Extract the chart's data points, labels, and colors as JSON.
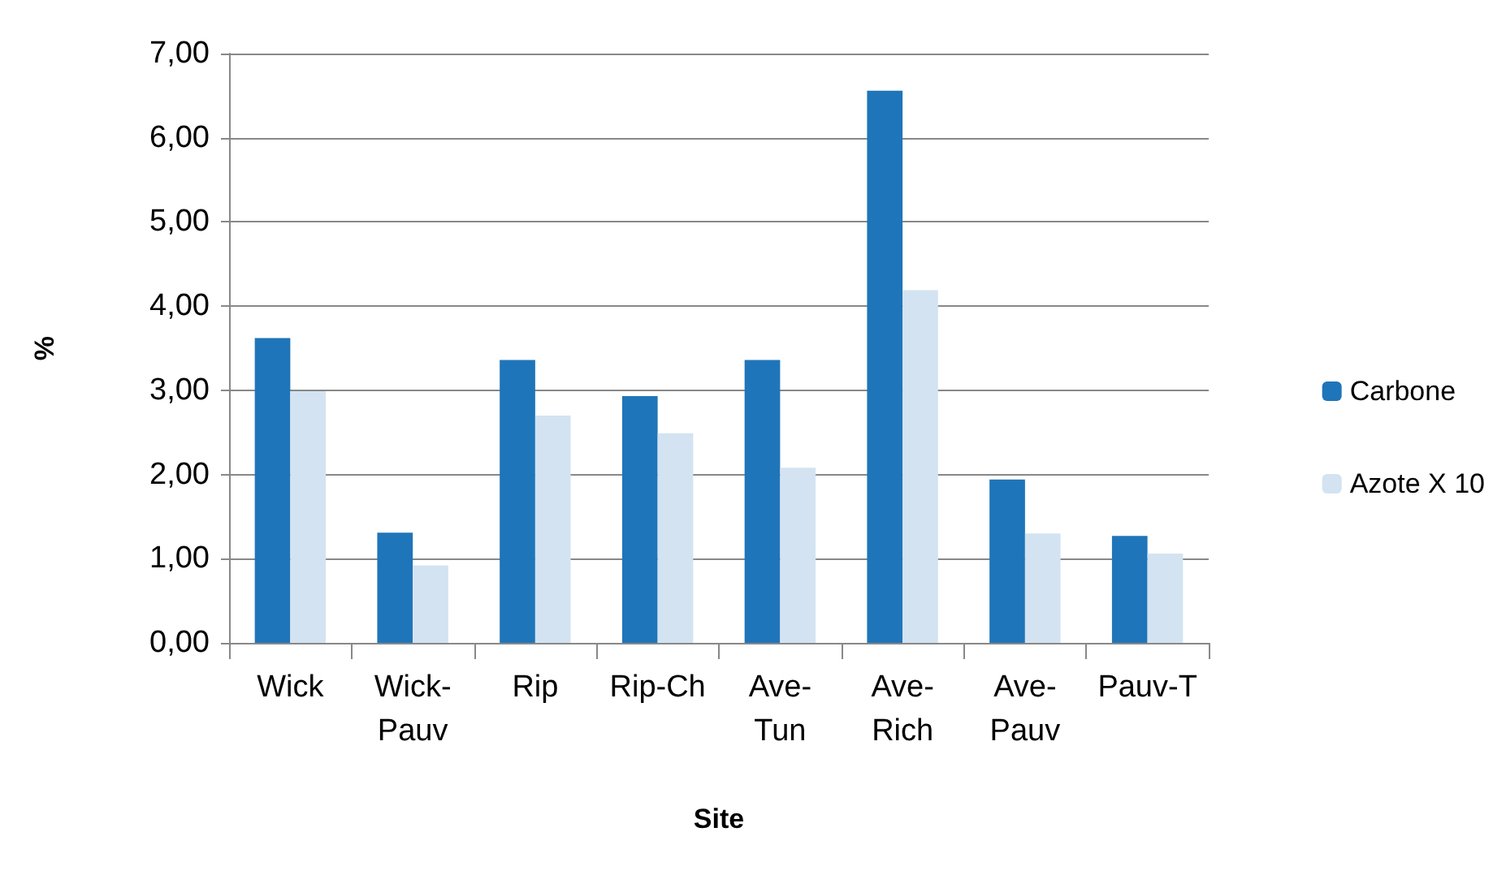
{
  "chart_data": {
    "type": "bar",
    "xlabel": "Site",
    "ylabel": "%",
    "categories": [
      "Wick",
      "Wick-Pauv",
      "Rip",
      "Rip-Ch",
      "Ave-Tun",
      "Ave-Rich",
      "Ave-Pauv",
      "Pauv-T"
    ],
    "series": [
      {
        "name": "Carbone",
        "color": "#1f75b9",
        "values": [
          3.62,
          1.31,
          3.36,
          2.93,
          3.36,
          6.56,
          1.94,
          1.27
        ]
      },
      {
        "name": "Azote X 10",
        "color": "#d3e3f1",
        "values": [
          2.99,
          0.92,
          2.7,
          2.49,
          2.08,
          4.19,
          1.3,
          1.06
        ]
      }
    ],
    "ylim": [
      0,
      7
    ],
    "yticks": [
      {
        "value": 0,
        "label": "0,00"
      },
      {
        "value": 1,
        "label": "1,00"
      },
      {
        "value": 2,
        "label": "2,00"
      },
      {
        "value": 3,
        "label": "3,00"
      },
      {
        "value": 4,
        "label": "4,00"
      },
      {
        "value": 5,
        "label": "5,00"
      },
      {
        "value": 6,
        "label": "6,00"
      },
      {
        "value": 7,
        "label": "7,00"
      }
    ],
    "grid": "y",
    "legend": "right"
  }
}
